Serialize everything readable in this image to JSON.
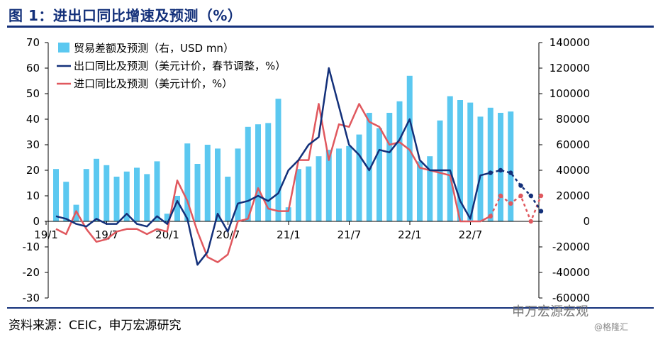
{
  "title": "图 1：进出口同比增速及预测（%）",
  "source": "资料来源：CEIC，申万宏源研究",
  "watermark": "申万宏源宏观",
  "watermark_sub": "@格隆汇",
  "colors": {
    "bars": "#5bc8f0",
    "export": "#13307a",
    "import": "#e0585e",
    "rule": "#13307a"
  },
  "chart_data": {
    "type": "bar+line",
    "x_tick_labels": [
      "19/1",
      "19/7",
      "20/1",
      "20/7",
      "21/1",
      "21/7",
      "22/1",
      "22/7"
    ],
    "x_tick_index": [
      0,
      6,
      12,
      18,
      24,
      30,
      36,
      42
    ],
    "y_left": {
      "min": -30,
      "max": 70,
      "step": 10
    },
    "y_right": {
      "min": -60000,
      "max": 140000,
      "step": 20000
    },
    "legend": [
      {
        "key": "bars",
        "label": "贸易差额及预测（右，USD mn）"
      },
      {
        "key": "export",
        "label": "出口同比及预测（美元计价，春节调整，%）"
      },
      {
        "key": "import",
        "label": "进口同比及预测（美元计价，%）"
      }
    ],
    "forecast_start_index": 47,
    "series": [
      {
        "key": "bars",
        "axis": "right",
        "values": [
          41000,
          31000,
          13000,
          41000,
          49000,
          44000,
          35000,
          39000,
          42000,
          37000,
          47000,
          6000,
          20000,
          61000,
          45000,
          60000,
          57000,
          35000,
          57000,
          74000,
          76000,
          77000,
          96000,
          11000,
          41000,
          43000,
          51000,
          56000,
          57000,
          59000,
          68000,
          85000,
          73000,
          85000,
          94000,
          114000,
          47000,
          51000,
          79000,
          98000,
          95000,
          93000,
          82000,
          89000,
          85000,
          86000
        ]
      },
      {
        "key": "export",
        "axis": "left",
        "values": [
          2,
          1,
          -1,
          -2,
          1,
          -1,
          -1,
          3,
          -1,
          -2,
          2,
          -1,
          8,
          1,
          -17,
          -12,
          3,
          -4,
          7,
          8,
          10,
          8,
          11,
          20,
          24,
          30,
          33,
          60,
          45,
          30,
          26,
          20,
          28,
          27,
          32,
          40,
          24,
          20,
          20,
          20,
          8,
          1,
          18,
          19,
          20,
          19,
          14,
          10,
          4
        ]
      },
      {
        "key": "import",
        "axis": "left",
        "values": [
          -3,
          -5,
          4,
          -3,
          -8,
          -7,
          -4,
          -3,
          -3,
          -5,
          -3,
          -4,
          16,
          8,
          -4,
          -14,
          -16,
          -13,
          0,
          1,
          13,
          5,
          4,
          4,
          24,
          24,
          46,
          24,
          38,
          37,
          46,
          39,
          37,
          30,
          31,
          28,
          21,
          20,
          19,
          18,
          0,
          0,
          0,
          2,
          10,
          7,
          10,
          0,
          10
        ]
      }
    ]
  }
}
